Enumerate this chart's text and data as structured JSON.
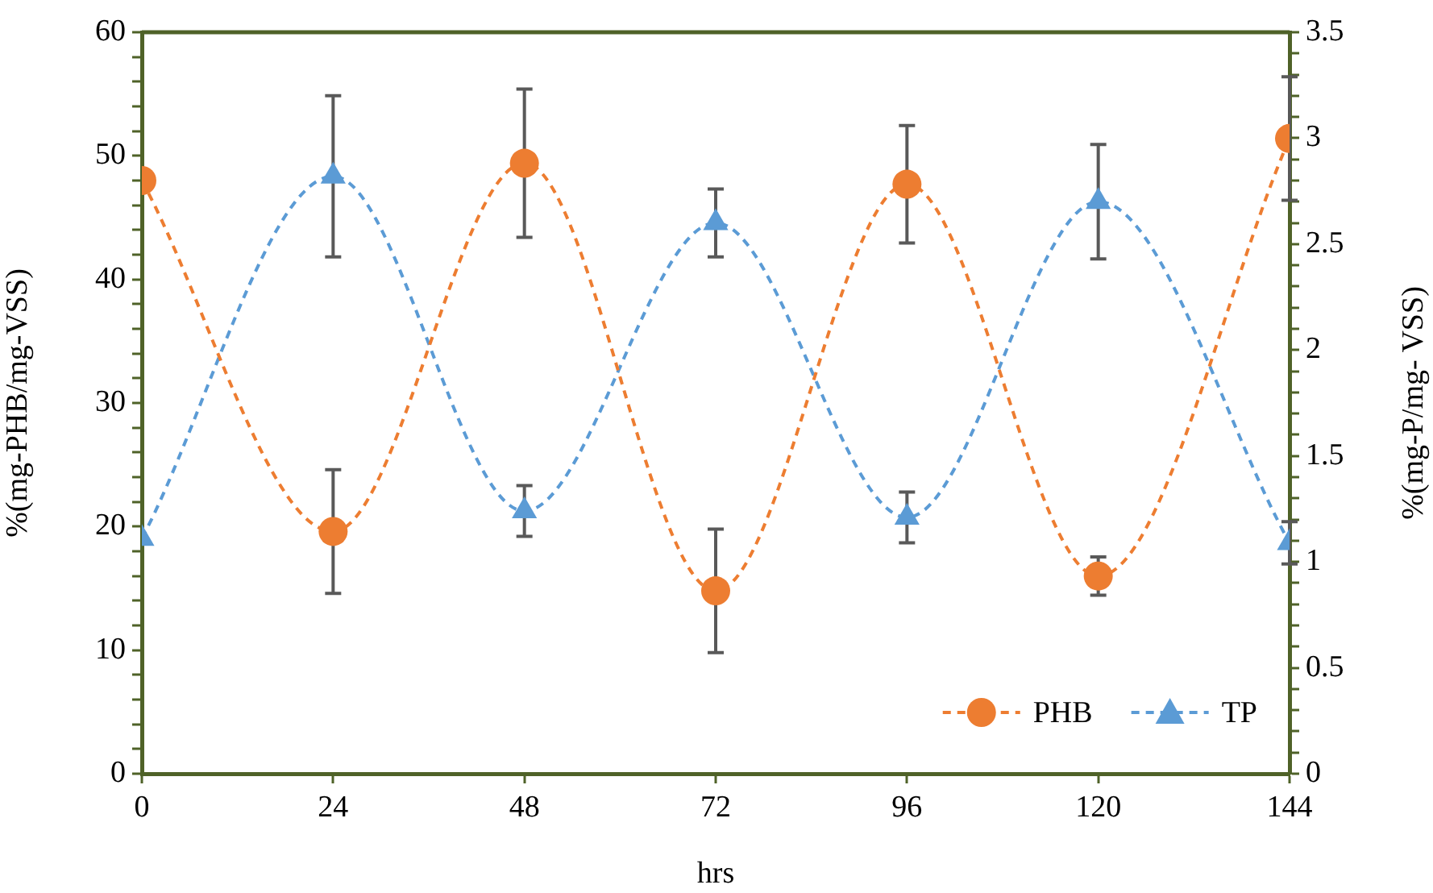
{
  "chart_data": {
    "type": "line",
    "xlabel": "hrs",
    "ylabel": "%(mg-PHB/mg-VSS)",
    "y2label": "%(mg-P/mg- VSS)",
    "x": [
      0,
      24,
      48,
      72,
      96,
      120,
      144
    ],
    "xlim": [
      0,
      144
    ],
    "xticks": [
      0,
      24,
      48,
      72,
      96,
      120,
      144
    ],
    "ylim": [
      0,
      60
    ],
    "yticks": [
      0,
      {
        "value": 2,
        "label": null
      },
      {
        "value": 4,
        "label": null
      },
      {
        "value": 6,
        "label": null
      },
      {
        "value": 8,
        "label": null
      },
      10,
      {
        "value": 12,
        "label": null
      },
      {
        "value": 14,
        "label": null
      },
      {
        "value": 16,
        "label": null
      },
      {
        "value": 18,
        "label": null
      },
      20,
      {
        "value": 22,
        "label": null
      },
      {
        "value": 24,
        "label": null
      },
      {
        "value": 26,
        "label": null
      },
      {
        "value": 28,
        "label": null
      },
      30,
      {
        "value": 32,
        "label": null
      },
      {
        "value": 34,
        "label": null
      },
      {
        "value": 36,
        "label": null
      },
      {
        "value": 38,
        "label": null
      },
      40,
      {
        "value": 42,
        "label": null
      },
      {
        "value": 44,
        "label": null
      },
      {
        "value": 46,
        "label": null
      },
      {
        "value": 48,
        "label": null
      },
      50,
      {
        "value": 52,
        "label": null
      },
      {
        "value": 54,
        "label": null
      },
      {
        "value": 56,
        "label": null
      },
      {
        "value": 58,
        "label": null
      },
      60
    ],
    "y2lim": [
      0,
      3.5
    ],
    "y2ticks": [
      0,
      {
        "value": 0.1,
        "label": null
      },
      {
        "value": 0.2,
        "label": null
      },
      {
        "value": 0.3,
        "label": null
      },
      {
        "value": 0.4,
        "label": null
      },
      0.5,
      {
        "value": 0.6,
        "label": null
      },
      {
        "value": 0.7,
        "label": null
      },
      {
        "value": 0.8,
        "label": null
      },
      {
        "value": 0.9,
        "label": null
      },
      1,
      {
        "value": 1.1,
        "label": null
      },
      {
        "value": 1.2,
        "label": null
      },
      {
        "value": 1.3,
        "label": null
      },
      {
        "value": 1.4,
        "label": null
      },
      1.5,
      {
        "value": 1.6,
        "label": null
      },
      {
        "value": 1.7,
        "label": null
      },
      {
        "value": 1.8,
        "label": null
      },
      {
        "value": 1.9,
        "label": null
      },
      2,
      {
        "value": 2.1,
        "label": null
      },
      {
        "value": 2.2,
        "label": null
      },
      {
        "value": 2.3,
        "label": null
      },
      {
        "value": 2.4,
        "label": null
      },
      2.5,
      {
        "value": 2.6,
        "label": null
      },
      {
        "value": 2.7,
        "label": null
      },
      {
        "value": 2.8,
        "label": null
      },
      {
        "value": 2.9,
        "label": null
      },
      3,
      {
        "value": 3.1,
        "label": null
      },
      {
        "value": 3.2,
        "label": null
      },
      {
        "value": 3.3,
        "label": null
      },
      {
        "value": 3.4,
        "label": null
      },
      3.5
    ],
    "grid": false,
    "legend": "bottom right",
    "line_style": "dashed",
    "series": [
      {
        "name": "PHB",
        "color": "#ed7d31",
        "marker": "circle",
        "values": [
          48.0,
          19.6,
          49.4,
          14.8,
          47.7,
          16.0,
          51.4
        ],
        "errors": [
          null,
          5,
          6,
          5,
          4.75,
          1.55,
          5
        ]
      },
      {
        "name": "TP",
        "color": "#5b9bd5",
        "marker": "triangle",
        "axis": "y2",
        "values": [
          1.11,
          2.82,
          1.24,
          2.6,
          1.21,
          2.7,
          1.09
        ],
        "errors": [
          null,
          0.38,
          0.12,
          0.16,
          0.12,
          0.27,
          0.1
        ]
      }
    ]
  }
}
